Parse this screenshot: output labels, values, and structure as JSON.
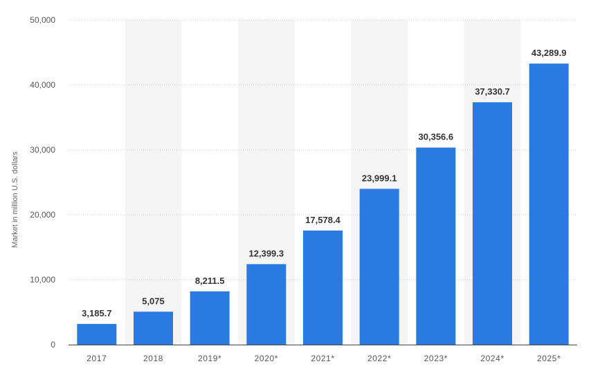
{
  "chart_data": {
    "type": "bar",
    "categories": [
      "2017",
      "2018",
      "2019*",
      "2020*",
      "2021*",
      "2022*",
      "2023*",
      "2024*",
      "2025*"
    ],
    "values": [
      3185.7,
      5075,
      8211.5,
      12399.3,
      17578.4,
      23999.1,
      30356.6,
      37330.7,
      43289.9
    ],
    "value_labels": [
      "3,185.7",
      "5,075",
      "8,211.5",
      "12,399.3",
      "17,578.4",
      "23,999.1",
      "30,356.6",
      "37,330.7",
      "43,289.9"
    ],
    "title": "",
    "xlabel": "",
    "ylabel": "Market in million U.S. dollars",
    "ylim": [
      0,
      50000
    ],
    "yticks": [
      0,
      10000,
      20000,
      30000,
      40000,
      50000
    ],
    "ytick_labels": [
      "0",
      "10,000",
      "20,000",
      "30,000",
      "40,000",
      "50,000"
    ],
    "grid": true,
    "bar_color": "#2a7ae2",
    "band_color": "#f5f5f5",
    "grid_color": "#cccccc",
    "axis_color": "#444444"
  }
}
